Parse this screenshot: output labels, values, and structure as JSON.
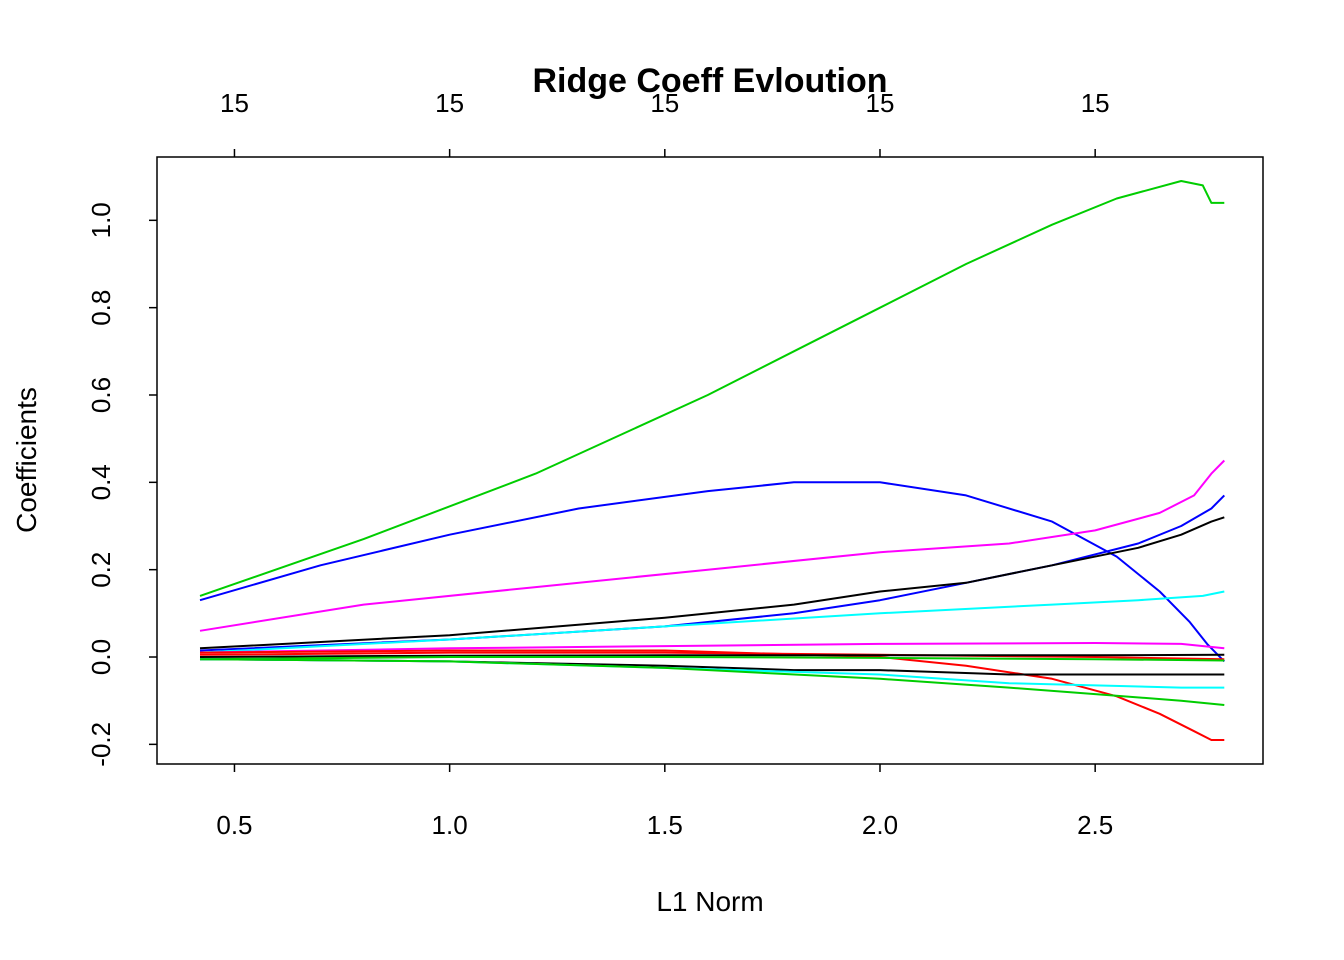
{
  "chart_data": {
    "type": "line",
    "title": "Ridge Coeff Evloution",
    "xlabel": "L1 Norm",
    "ylabel": "Coefficients",
    "xlim": [
      0.32,
      2.89
    ],
    "ylim": [
      -0.245,
      1.145
    ],
    "x_ticks": [
      0.5,
      1.0,
      1.5,
      2.0,
      2.5
    ],
    "x_tick_labels": [
      "0.5",
      "1.0",
      "1.5",
      "2.0",
      "2.5"
    ],
    "y_ticks": [
      -0.2,
      0.0,
      0.2,
      0.4,
      0.6,
      0.8,
      1.0
    ],
    "y_tick_labels": [
      "-0.2",
      "0.0",
      "0.2",
      "0.4",
      "0.6",
      "0.8",
      "1.0"
    ],
    "top_ticks": [
      0.5,
      1.0,
      1.5,
      2.0,
      2.5
    ],
    "top_tick_labels": [
      "15",
      "15",
      "15",
      "15",
      "15"
    ],
    "grid": false,
    "series": [
      {
        "color": "#00cd00",
        "points": [
          [
            0.42,
            0.14
          ],
          [
            0.8,
            0.27
          ],
          [
            1.2,
            0.42
          ],
          [
            1.6,
            0.6
          ],
          [
            1.8,
            0.7
          ],
          [
            2.0,
            0.8
          ],
          [
            2.2,
            0.9
          ],
          [
            2.4,
            0.99
          ],
          [
            2.55,
            1.05
          ],
          [
            2.7,
            1.09
          ],
          [
            2.75,
            1.08
          ],
          [
            2.77,
            1.04
          ],
          [
            2.8,
            1.04
          ]
        ]
      },
      {
        "color": "#0000ff",
        "points": [
          [
            0.42,
            0.13
          ],
          [
            0.7,
            0.21
          ],
          [
            1.0,
            0.28
          ],
          [
            1.3,
            0.34
          ],
          [
            1.6,
            0.38
          ],
          [
            1.8,
            0.4
          ],
          [
            2.0,
            0.4
          ],
          [
            2.2,
            0.37
          ],
          [
            2.4,
            0.31
          ],
          [
            2.55,
            0.23
          ],
          [
            2.65,
            0.15
          ],
          [
            2.72,
            0.08
          ],
          [
            2.76,
            0.03
          ],
          [
            2.8,
            -0.01
          ]
        ]
      },
      {
        "color": "#ff00ff",
        "points": [
          [
            0.42,
            0.06
          ],
          [
            0.8,
            0.12
          ],
          [
            1.2,
            0.16
          ],
          [
            1.6,
            0.2
          ],
          [
            2.0,
            0.24
          ],
          [
            2.3,
            0.26
          ],
          [
            2.5,
            0.29
          ],
          [
            2.65,
            0.33
          ],
          [
            2.73,
            0.37
          ],
          [
            2.77,
            0.42
          ],
          [
            2.8,
            0.45
          ]
        ]
      },
      {
        "color": "#0000ff",
        "points": [
          [
            0.42,
            0.015
          ],
          [
            1.0,
            0.04
          ],
          [
            1.5,
            0.07
          ],
          [
            1.8,
            0.1
          ],
          [
            2.0,
            0.13
          ],
          [
            2.2,
            0.17
          ],
          [
            2.4,
            0.21
          ],
          [
            2.6,
            0.26
          ],
          [
            2.7,
            0.3
          ],
          [
            2.77,
            0.34
          ],
          [
            2.8,
            0.37
          ]
        ]
      },
      {
        "color": "#000000",
        "points": [
          [
            0.42,
            0.02
          ],
          [
            1.0,
            0.05
          ],
          [
            1.5,
            0.09
          ],
          [
            1.8,
            0.12
          ],
          [
            2.0,
            0.15
          ],
          [
            2.2,
            0.17
          ],
          [
            2.4,
            0.21
          ],
          [
            2.6,
            0.25
          ],
          [
            2.7,
            0.28
          ],
          [
            2.77,
            0.31
          ],
          [
            2.8,
            0.32
          ]
        ]
      },
      {
        "color": "#00ffff",
        "points": [
          [
            0.42,
            0.01
          ],
          [
            1.0,
            0.04
          ],
          [
            1.5,
            0.07
          ],
          [
            2.0,
            0.1
          ],
          [
            2.4,
            0.12
          ],
          [
            2.6,
            0.13
          ],
          [
            2.75,
            0.14
          ],
          [
            2.8,
            0.15
          ]
        ]
      },
      {
        "color": "#ff00ff",
        "points": [
          [
            0.42,
            0.01
          ],
          [
            1.0,
            0.02
          ],
          [
            1.5,
            0.025
          ],
          [
            2.0,
            0.03
          ],
          [
            2.5,
            0.032
          ],
          [
            2.7,
            0.03
          ],
          [
            2.8,
            0.02
          ]
        ]
      },
      {
        "color": "#ff0000",
        "points": [
          [
            0.42,
            0.01
          ],
          [
            1.0,
            0.015
          ],
          [
            1.5,
            0.015
          ],
          [
            2.0,
            0.0
          ],
          [
            2.2,
            -0.02
          ],
          [
            2.4,
            -0.05
          ],
          [
            2.55,
            -0.09
          ],
          [
            2.65,
            -0.13
          ],
          [
            2.73,
            -0.17
          ],
          [
            2.77,
            -0.19
          ],
          [
            2.8,
            -0.19
          ]
        ]
      },
      {
        "color": "#ff0000",
        "points": [
          [
            0.42,
            0.005
          ],
          [
            1.0,
            0.01
          ],
          [
            1.5,
            0.01
          ],
          [
            2.0,
            0.005
          ],
          [
            2.5,
            0.0
          ],
          [
            2.8,
            -0.005
          ]
        ]
      },
      {
        "color": "#000000",
        "points": [
          [
            0.42,
            0.0
          ],
          [
            1.0,
            0.003
          ],
          [
            1.5,
            0.004
          ],
          [
            2.0,
            0.004
          ],
          [
            2.5,
            0.004
          ],
          [
            2.8,
            0.005
          ]
        ]
      },
      {
        "color": "#00cd00",
        "points": [
          [
            0.42,
            -0.005
          ],
          [
            1.0,
            0.0
          ],
          [
            1.5,
            0.0
          ],
          [
            2.0,
            -0.002
          ],
          [
            2.5,
            -0.005
          ],
          [
            2.8,
            -0.008
          ]
        ]
      },
      {
        "color": "#000000",
        "points": [
          [
            0.42,
            -0.005
          ],
          [
            1.0,
            -0.01
          ],
          [
            1.5,
            -0.02
          ],
          [
            1.8,
            -0.03
          ],
          [
            2.0,
            -0.03
          ],
          [
            2.3,
            -0.04
          ],
          [
            2.6,
            -0.04
          ],
          [
            2.8,
            -0.04
          ]
        ]
      },
      {
        "color": "#00ffff",
        "points": [
          [
            0.42,
            -0.005
          ],
          [
            1.0,
            -0.01
          ],
          [
            1.5,
            -0.025
          ],
          [
            2.0,
            -0.04
          ],
          [
            2.3,
            -0.06
          ],
          [
            2.5,
            -0.065
          ],
          [
            2.7,
            -0.07
          ],
          [
            2.8,
            -0.07
          ]
        ]
      },
      {
        "color": "#00cd00",
        "points": [
          [
            0.42,
            -0.005
          ],
          [
            1.0,
            -0.01
          ],
          [
            1.5,
            -0.025
          ],
          [
            2.0,
            -0.05
          ],
          [
            2.3,
            -0.07
          ],
          [
            2.5,
            -0.085
          ],
          [
            2.7,
            -0.1
          ],
          [
            2.8,
            -0.11
          ]
        ]
      }
    ]
  }
}
